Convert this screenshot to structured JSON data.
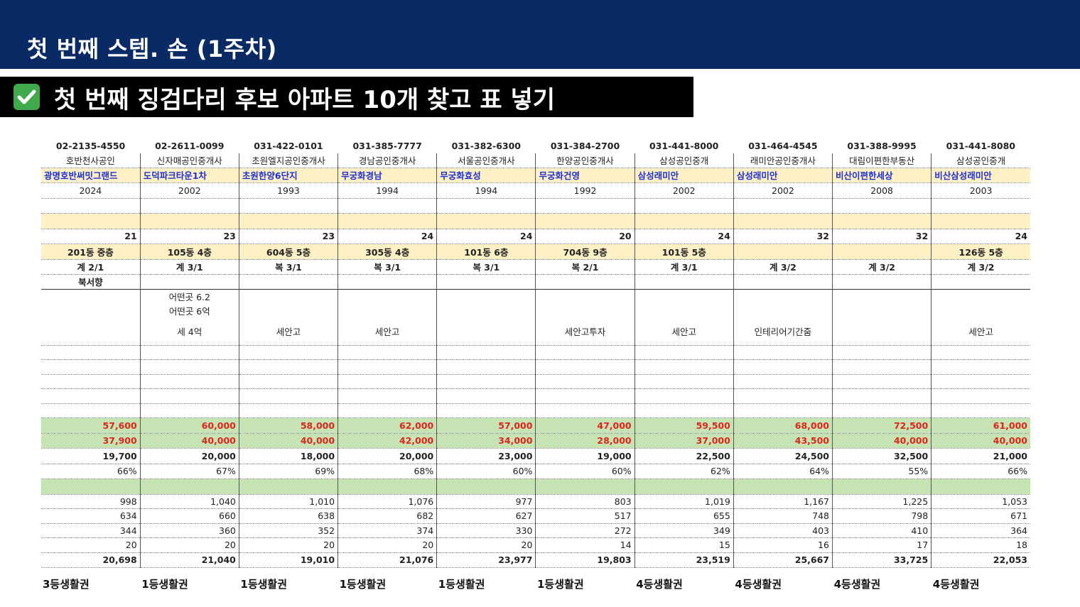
{
  "header": {
    "title": "첫 번째 스텝. 손 (1주차)"
  },
  "banner": {
    "title": "첫 번째 징검다리 후보 아파트 10개 찾고 표 넣기",
    "icon": "check-mark-icon",
    "icon_color": "#3fa94b"
  },
  "colors": {
    "header_bg": "#0a2a66",
    "yellow": "#fdf0c4",
    "green": "#c6e3b3",
    "red": "#e0241c",
    "blue": "#1f2fd6"
  },
  "phones": [
    "02-2135-4550",
    "02-2611-0099",
    "031-422-0101",
    "031-385-7777",
    "031-382-6300",
    "031-384-2700",
    "031-441-8000",
    "031-464-4545",
    "031-388-9995",
    "031-441-8080"
  ],
  "agents": [
    "호반천사공인",
    "신자매공인중개사",
    "초원엘지공인중개사",
    "경남공인중개사",
    "서울공인중개사",
    "한양공인중개사",
    "삼성공인중개",
    "래미안공인중개사",
    "대림이편한부동산",
    "삼성공인중개"
  ],
  "apartments": [
    "광명호반써밋그랜드",
    "도덕파크타운1차",
    "초원한양6단지",
    "무궁화경남",
    "무궁화효성",
    "무궁화건영",
    "삼성래미안",
    "삼성래미안",
    "비산이편한세상",
    "비산삼성래미안"
  ],
  "years": [
    "2024",
    "2002",
    "1993",
    "1994",
    "1994",
    "1992",
    "2002",
    "2002",
    "2008",
    "2003"
  ],
  "pyeong": [
    "21",
    "23",
    "23",
    "24",
    "24",
    "20",
    "24",
    "32",
    "32",
    "24"
  ],
  "units": [
    "201동 중층",
    "105동 4층",
    "604동 5층",
    "305동 4층",
    "101동 6층",
    "704동 9층",
    "101동 5층",
    "",
    "",
    "126동 5층"
  ],
  "structure": [
    "계 2/1",
    "계 3/1",
    "복 3/1",
    "복 3/1",
    "복 3/1",
    "복 2/1",
    "계 3/1",
    "계 3/2",
    "계 3/2",
    "계 3/2"
  ],
  "direction": [
    "북서향",
    "",
    "",
    "",
    "",
    "",
    "",
    "",
    "",
    ""
  ],
  "note1": [
    "",
    "어떤곳 6.2",
    "",
    "",
    "",
    "",
    "",
    "",
    "",
    ""
  ],
  "note2": [
    "",
    "어떤곳 6억",
    "",
    "",
    "",
    "",
    "",
    "",
    "",
    ""
  ],
  "note3": [
    "",
    "세 4억",
    "세안고",
    "세안고",
    "",
    "세안고투자",
    "세안고",
    "인테리어기간줌",
    "",
    "세안고"
  ],
  "sale_price": [
    "57,600",
    "60,000",
    "58,000",
    "62,000",
    "57,000",
    "47,000",
    "59,500",
    "68,000",
    "72,500",
    "61,000"
  ],
  "jeonse_price": [
    "37,900",
    "40,000",
    "40,000",
    "42,000",
    "34,000",
    "28,000",
    "37,000",
    "43,500",
    "40,000",
    "40,000"
  ],
  "gap": [
    "19,700",
    "20,000",
    "18,000",
    "20,000",
    "23,000",
    "19,000",
    "22,500",
    "24,500",
    "32,500",
    "21,000"
  ],
  "ratio": [
    "66%",
    "67%",
    "69%",
    "68%",
    "60%",
    "60%",
    "62%",
    "64%",
    "55%",
    "66%"
  ],
  "stat1": [
    "998",
    "1,040",
    "1,010",
    "1,076",
    "977",
    "803",
    "1,019",
    "1,167",
    "1,225",
    "1,053"
  ],
  "stat2": [
    "634",
    "660",
    "638",
    "682",
    "627",
    "517",
    "655",
    "748",
    "798",
    "671"
  ],
  "stat3": [
    "344",
    "360",
    "352",
    "374",
    "330",
    "272",
    "349",
    "403",
    "410",
    "364"
  ],
  "stat4": [
    "20",
    "20",
    "20",
    "20",
    "20",
    "14",
    "15",
    "16",
    "17",
    "18"
  ],
  "total": [
    "20,698",
    "21,040",
    "19,010",
    "21,076",
    "23,977",
    "19,803",
    "23,519",
    "25,667",
    "33,725",
    "22,053"
  ],
  "grades": [
    "3등생활권",
    "1등생활권",
    "1등생활권",
    "1등생활권",
    "1등생활권",
    "1등생활권",
    "4등생활권",
    "4등생활권",
    "4등생활권",
    "4등생활권"
  ]
}
